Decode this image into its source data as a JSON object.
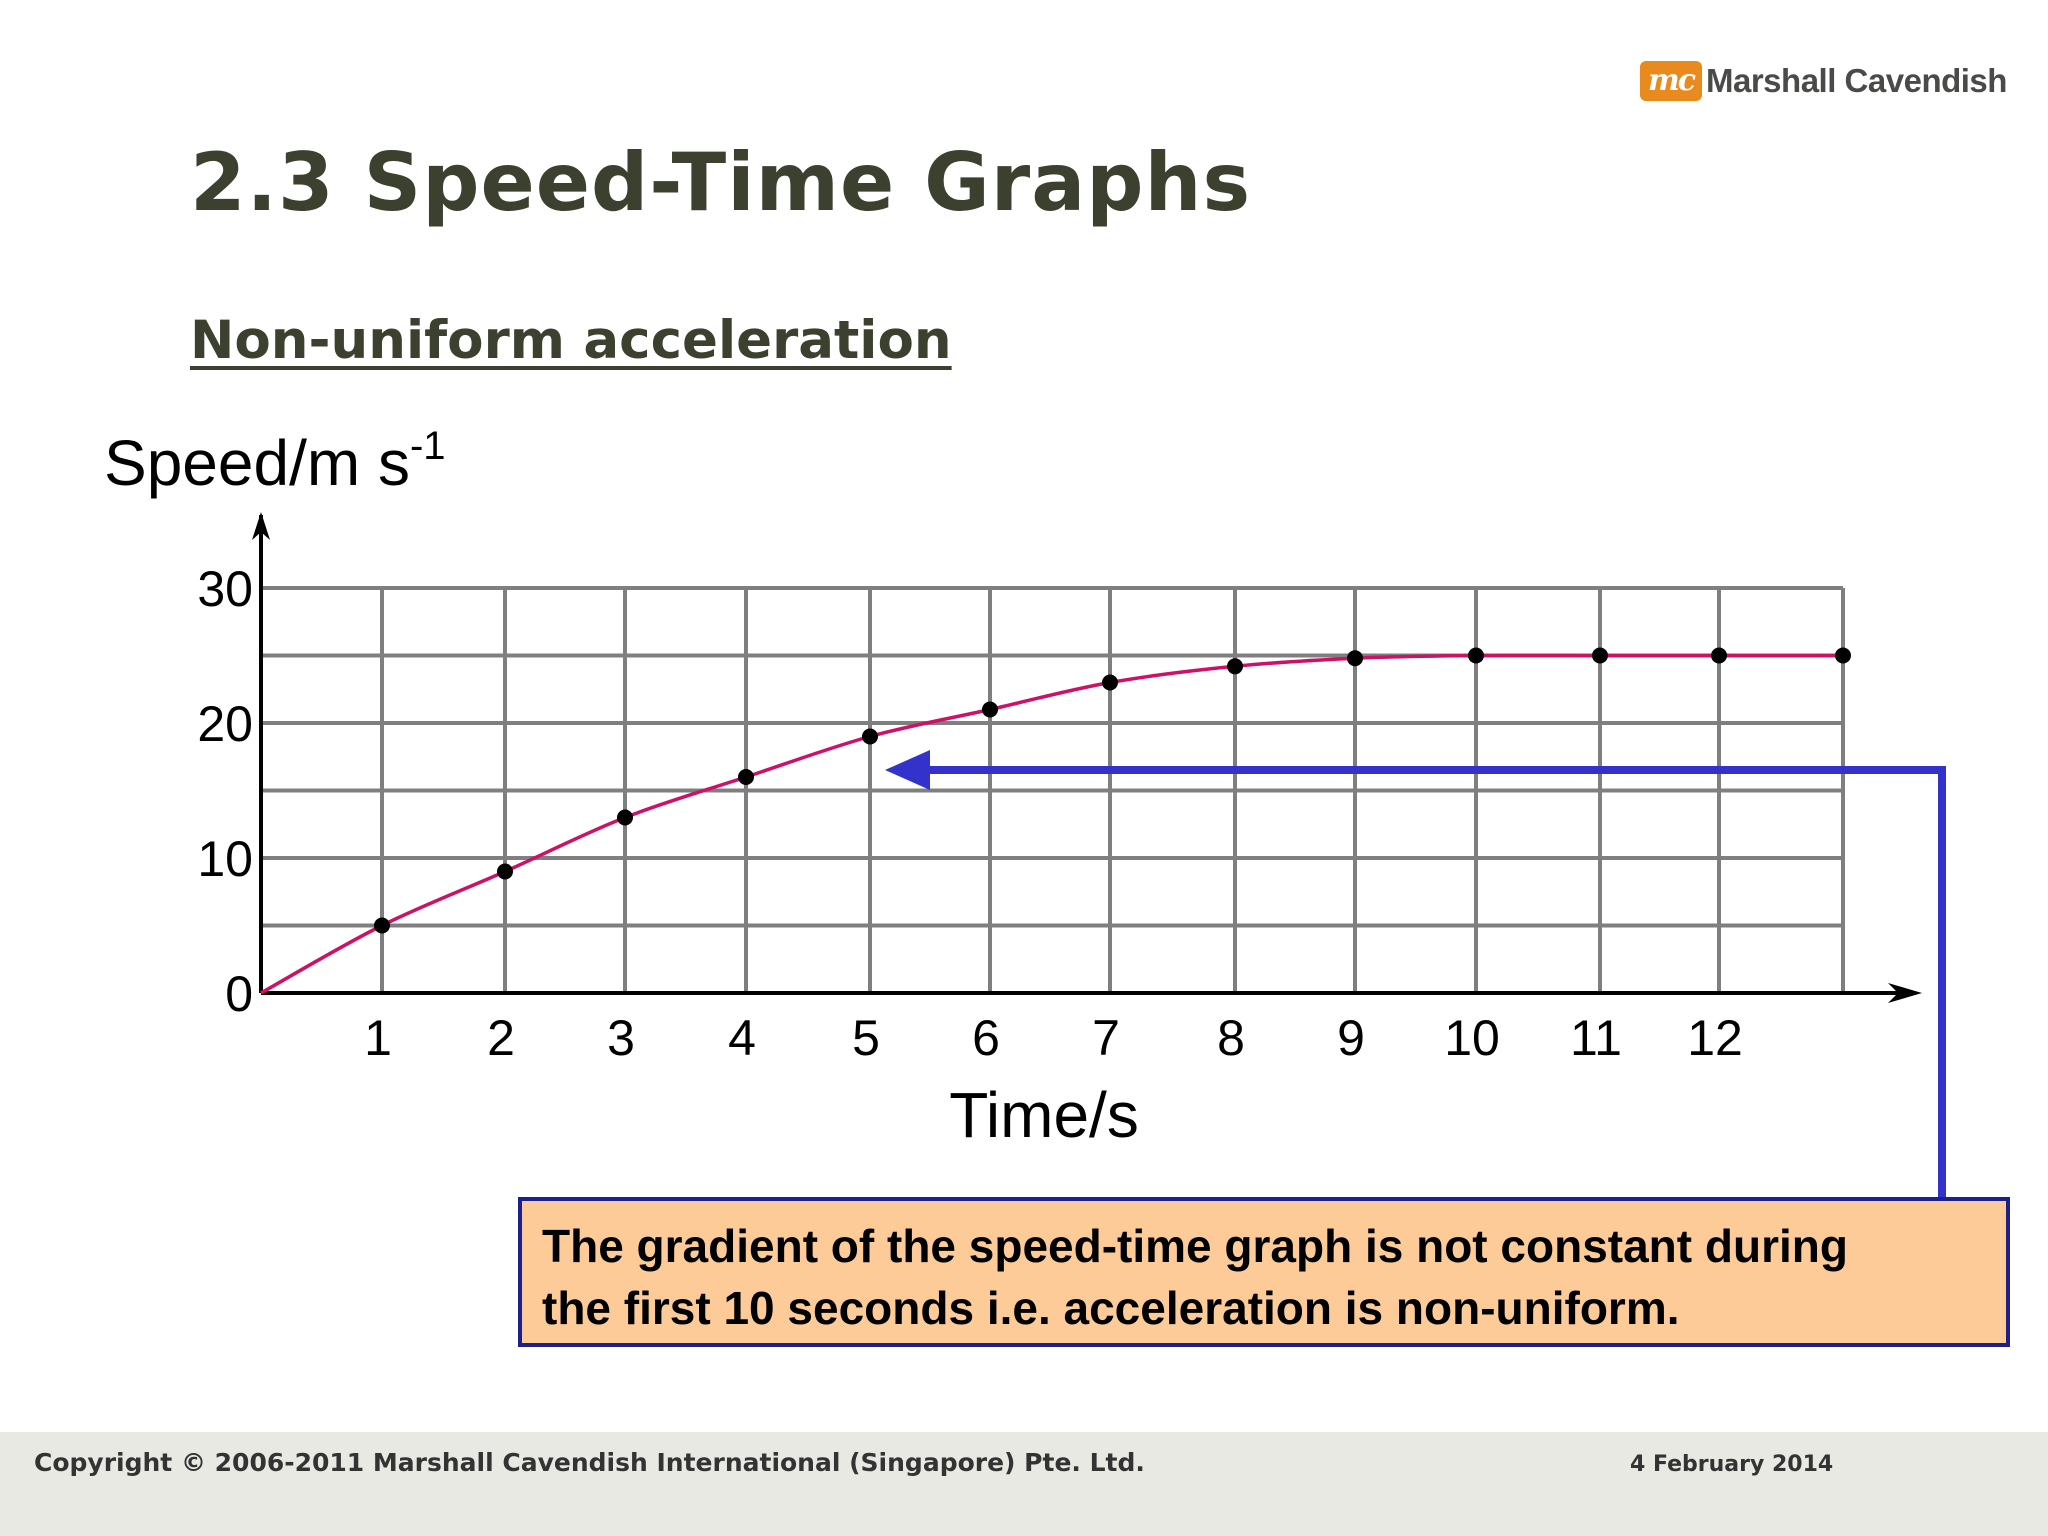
{
  "logo": {
    "mark": "mc",
    "text": "Marshall Cavendish"
  },
  "slide": {
    "title": "2.3 Speed-Time Graphs",
    "subtitle": "Non-uniform acceleration"
  },
  "chart_data": {
    "type": "line",
    "ylabel_base": "Speed/m s",
    "ylabel_sup": "-1",
    "xlabel": "Time/s",
    "x_ticks": [
      1,
      2,
      3,
      4,
      5,
      6,
      7,
      8,
      9,
      10,
      11,
      12
    ],
    "y_ticks": [
      0,
      10,
      20,
      30
    ],
    "xlim": [
      0,
      13
    ],
    "ylim": [
      0,
      30
    ],
    "grid": true,
    "points": [
      {
        "x": 1,
        "y": 5
      },
      {
        "x": 2,
        "y": 9
      },
      {
        "x": 3,
        "y": 13
      },
      {
        "x": 4,
        "y": 16
      },
      {
        "x": 5,
        "y": 19
      },
      {
        "x": 6,
        "y": 21
      },
      {
        "x": 7,
        "y": 23
      },
      {
        "x": 8,
        "y": 24.2
      },
      {
        "x": 9,
        "y": 24.8
      },
      {
        "x": 10,
        "y": 25
      },
      {
        "x": 11,
        "y": 25
      },
      {
        "x": 12,
        "y": 25
      },
      {
        "x": 13,
        "y": 25
      }
    ],
    "curve_color": "#cc1166",
    "annotation_arrow_color": "#3333cc"
  },
  "callout": {
    "line1": "The gradient of the speed-time graph is not constant during",
    "line2": "the first 10 seconds i.e. acceleration is non-uniform."
  },
  "footer": {
    "copyright": "Copyright © 2006-2011 Marshall Cavendish International (Singapore) Pte. Ltd.",
    "date": "4 February 2014"
  }
}
